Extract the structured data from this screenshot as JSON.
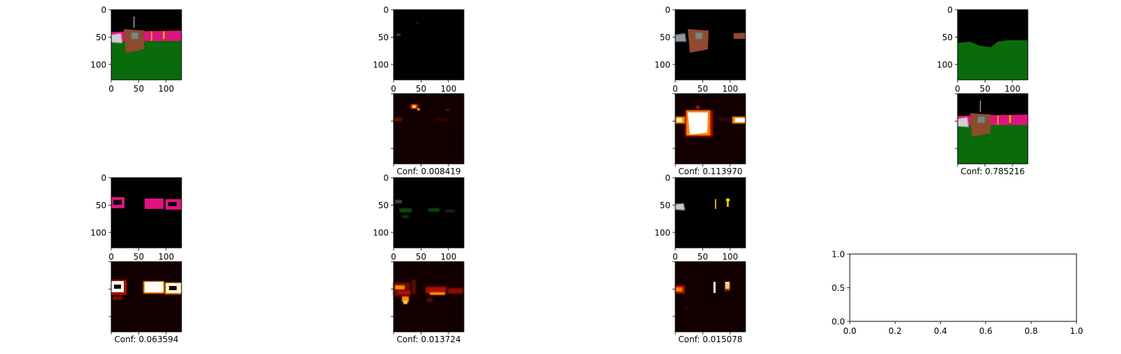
{
  "chart_data": {
    "type": "image_grid",
    "rows": 4,
    "cols": 4,
    "image_axis_ticks": [
      0,
      50,
      100
    ],
    "image_axis_tick_labels": [
      "0",
      "50",
      "100"
    ],
    "panels": [
      {
        "row": 0,
        "col": 0,
        "kind": "segmentation-full",
        "show_x_ticks": true,
        "show_y_ticks": true
      },
      {
        "row": 0,
        "col": 1,
        "kind": "mask-dark",
        "show_x_ticks": false,
        "show_y_ticks": true
      },
      {
        "row": 0,
        "col": 2,
        "kind": "mask-object",
        "show_x_ticks": false,
        "show_y_ticks": true
      },
      {
        "row": 0,
        "col": 3,
        "kind": "mask-ground",
        "show_x_ticks": false,
        "show_y_ticks": true
      },
      {
        "row": 1,
        "col": 1,
        "kind": "heatmap-sparse",
        "conf": "Conf: 0.008419"
      },
      {
        "row": 1,
        "col": 2,
        "kind": "heatmap-object",
        "conf": "Conf: 0.113970"
      },
      {
        "row": 1,
        "col": 3,
        "kind": "segmentation-full",
        "conf": "Conf: 0.785216"
      },
      {
        "row": 2,
        "col": 0,
        "kind": "mask-magenta",
        "show_y_ticks": true
      },
      {
        "row": 2,
        "col": 1,
        "kind": "mask-green",
        "show_y_ticks": true
      },
      {
        "row": 2,
        "col": 2,
        "kind": "mask-yellow",
        "show_y_ticks": true
      },
      {
        "row": 3,
        "col": 0,
        "kind": "heatmap-bands",
        "conf": "Conf: 0.063594"
      },
      {
        "row": 3,
        "col": 1,
        "kind": "heatmap-diffuse",
        "conf": "Conf: 0.013724"
      },
      {
        "row": 3,
        "col": 2,
        "kind": "heatmap-spots",
        "conf": "Conf: 0.015078"
      }
    ],
    "empty_axes": {
      "row": 3,
      "col": 3,
      "xlim": [
        0.0,
        1.0
      ],
      "ylim": [
        0.0,
        1.0
      ],
      "xticks": [
        "0.0",
        "0.2",
        "0.4",
        "0.6",
        "0.8",
        "1.0"
      ],
      "yticks": [
        "0.0",
        "0.5",
        "1.0"
      ]
    },
    "colors": {
      "magenta": "#e0127f",
      "green": "#0a6b0a",
      "brown": "#8f4a2f",
      "heat_dark": "#120000",
      "heat_red": "#b01000",
      "heat_orange": "#ff8a00",
      "heat_white": "#ffffff",
      "yellow": "#d8b400",
      "sky": "#000000"
    }
  }
}
